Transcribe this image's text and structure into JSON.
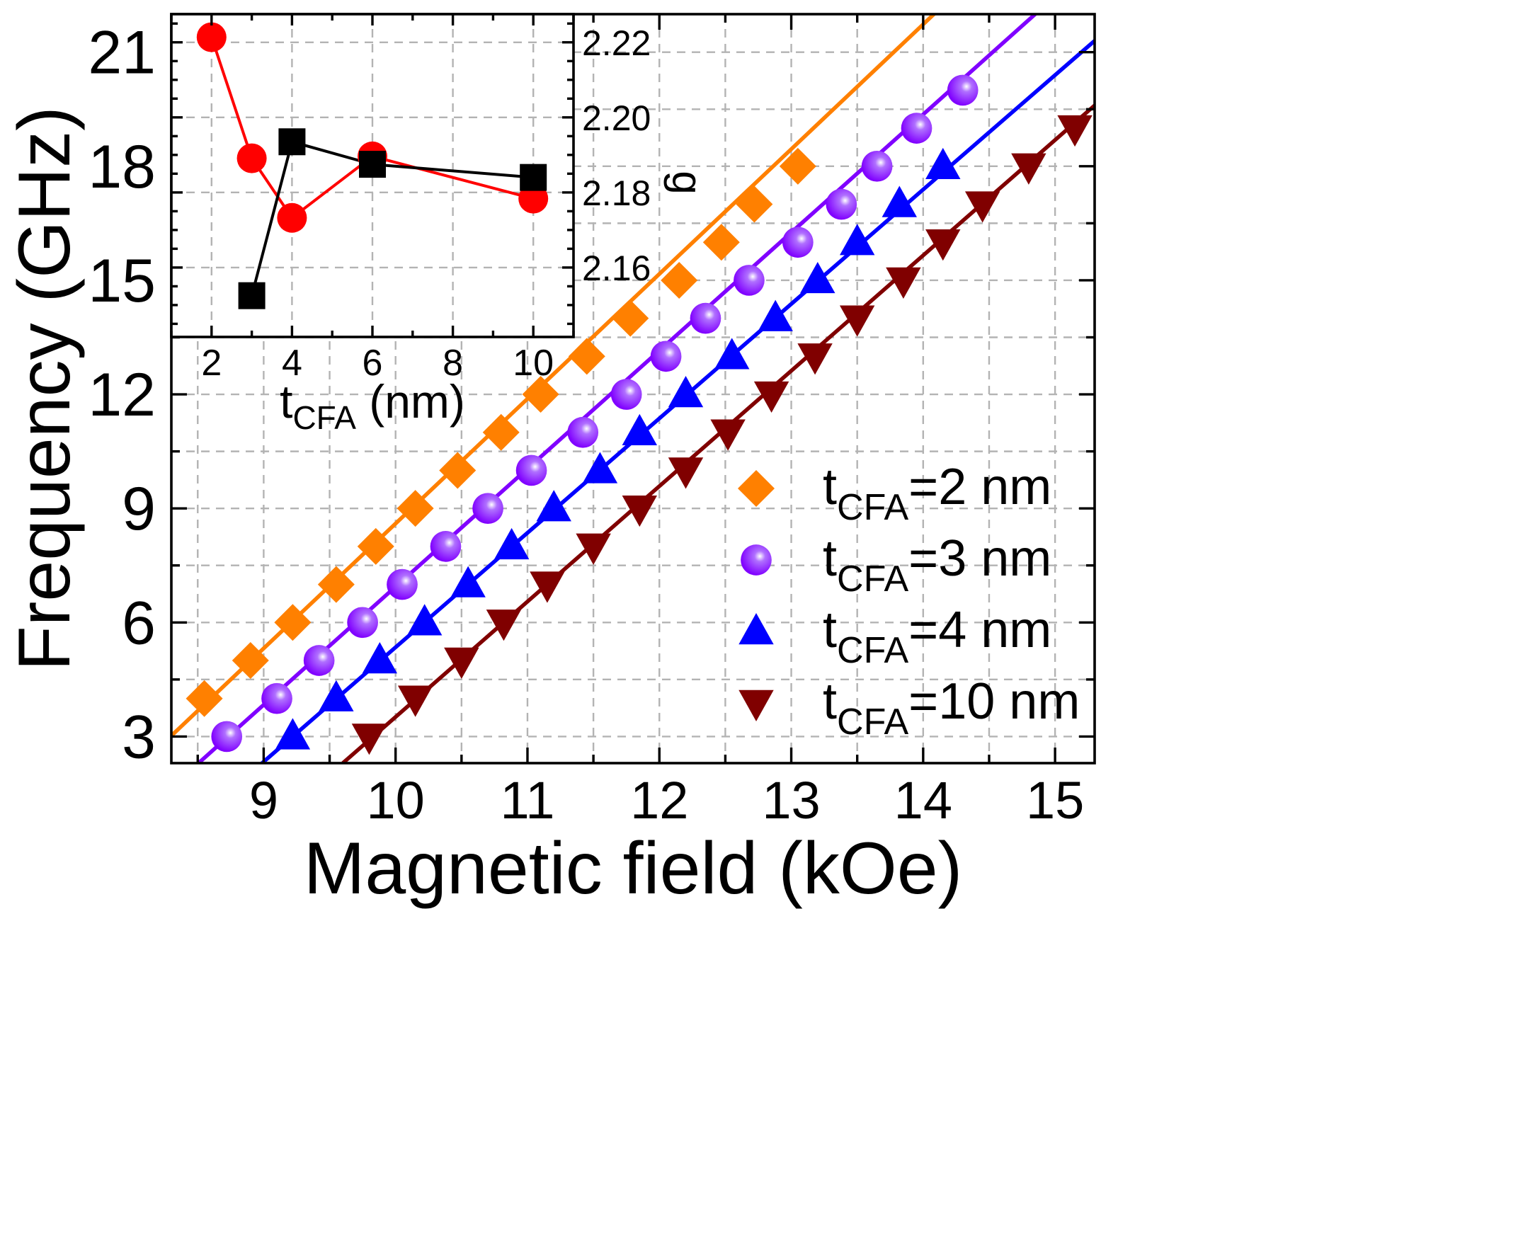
{
  "chart_data": [
    {
      "type": "scatter",
      "title": "",
      "xlabel": "Magnetic field (kOe)",
      "ylabel": "Frequency (GHz)",
      "xlim": [
        8.3,
        15.3
      ],
      "ylim": [
        2.3,
        22.0
      ],
      "x_ticks": [
        9,
        10,
        11,
        12,
        13,
        14,
        15
      ],
      "y_ticks": [
        3,
        6,
        9,
        12,
        15,
        18,
        21
      ],
      "grid": true,
      "legend_position": "bottom-right",
      "series": [
        {
          "name": "t_CFA=2 nm",
          "label_main": "t",
          "label_sub": "CFA",
          "label_rest": "=2 nm",
          "marker": "diamond",
          "color": "#ff8000",
          "points": [
            [
              8.55,
              4
            ],
            [
              8.9,
              5
            ],
            [
              9.22,
              6
            ],
            [
              9.55,
              7
            ],
            [
              9.85,
              8
            ],
            [
              10.15,
              9
            ],
            [
              10.47,
              10
            ],
            [
              10.8,
              11
            ],
            [
              11.1,
              12
            ],
            [
              11.45,
              13
            ],
            [
              11.78,
              14
            ],
            [
              12.15,
              15
            ],
            [
              12.47,
              16
            ],
            [
              12.72,
              17
            ],
            [
              13.05,
              18
            ]
          ],
          "fit": [
            [
              8.3,
              3.02
            ],
            [
              15.3,
              26.0
            ]
          ]
        },
        {
          "name": "t_CFA=3 nm",
          "label_main": "t",
          "label_sub": "CFA",
          "label_rest": "=3 nm",
          "marker": "sphere",
          "color": "#8000ff",
          "points": [
            [
              8.72,
              3
            ],
            [
              9.1,
              4
            ],
            [
              9.42,
              5
            ],
            [
              9.75,
              6
            ],
            [
              10.05,
              7
            ],
            [
              10.38,
              8
            ],
            [
              10.7,
              9
            ],
            [
              11.03,
              10
            ],
            [
              11.42,
              11
            ],
            [
              11.75,
              12
            ],
            [
              12.05,
              13
            ],
            [
              12.35,
              14
            ],
            [
              12.68,
              15
            ],
            [
              13.05,
              16
            ],
            [
              13.38,
              17
            ],
            [
              13.65,
              18
            ],
            [
              13.95,
              19
            ],
            [
              14.3,
              20
            ]
          ],
          "fit": [
            [
              8.3,
              1.66
            ],
            [
              15.3,
              23.4
            ]
          ]
        },
        {
          "name": "t_CFA=4 nm",
          "label_main": "t",
          "label_sub": "CFA",
          "label_rest": "=4 nm",
          "marker": "triangle-up",
          "color": "#0000ff",
          "points": [
            [
              9.22,
              3
            ],
            [
              9.55,
              4
            ],
            [
              9.88,
              5
            ],
            [
              10.22,
              6
            ],
            [
              10.55,
              7
            ],
            [
              10.88,
              8
            ],
            [
              11.2,
              9
            ],
            [
              11.55,
              10
            ],
            [
              11.85,
              11
            ],
            [
              12.2,
              12
            ],
            [
              12.55,
              13
            ],
            [
              12.88,
              14
            ],
            [
              13.2,
              15
            ],
            [
              13.5,
              16
            ],
            [
              13.82,
              17
            ],
            [
              14.15,
              18
            ]
          ],
          "fit": [
            [
              8.3,
              0.23
            ],
            [
              15.3,
              21.3
            ]
          ]
        },
        {
          "name": "t_CFA=10 nm",
          "label_main": "t",
          "label_sub": "CFA",
          "label_rest": "=10 nm",
          "marker": "triangle-down",
          "color": "#800000",
          "points": [
            [
              9.8,
              3
            ],
            [
              10.15,
              4
            ],
            [
              10.5,
              5
            ],
            [
              10.82,
              6
            ],
            [
              11.15,
              7
            ],
            [
              11.5,
              8
            ],
            [
              11.85,
              9
            ],
            [
              12.2,
              10
            ],
            [
              12.52,
              11
            ],
            [
              12.85,
              12
            ],
            [
              13.18,
              13
            ],
            [
              13.5,
              14
            ],
            [
              13.85,
              15
            ],
            [
              14.15,
              16
            ],
            [
              14.45,
              17
            ],
            [
              14.8,
              18
            ],
            [
              15.15,
              19
            ]
          ],
          "fit": [
            [
              9.6,
              2.3
            ],
            [
              15.3,
              19.6
            ]
          ]
        }
      ]
    },
    {
      "type": "line",
      "title": "",
      "xlabel_main": "t",
      "xlabel_sub": "CFA",
      "xlabel_rest": " (nm)",
      "xlabel": "t_CFA (nm)",
      "ylabel_right": "g",
      "xlim": [
        1.0,
        11.0
      ],
      "x_ticks": [
        2,
        4,
        6,
        8,
        10
      ],
      "y_right_lim": [
        2.1415,
        2.2275
      ],
      "y_right_ticks": [
        "2.16",
        "2.18",
        "2.20",
        "2.22"
      ],
      "y_left_lim": [
        13.6,
        22.0
      ],
      "grid": true,
      "series": [
        {
          "marker": "circle",
          "color": "#ff0000",
          "axis": "left",
          "points": [
            [
              2,
              21.4
            ],
            [
              3,
              18.25
            ],
            [
              4,
              16.7
            ],
            [
              6,
              18.3
            ],
            [
              10,
              17.2
            ]
          ]
        },
        {
          "marker": "square",
          "color": "#000000",
          "axis": "right",
          "points": [
            [
              3,
              2.1525
            ],
            [
              4,
              2.1935
            ],
            [
              6,
              2.1875
            ],
            [
              10,
              2.184
            ]
          ]
        }
      ]
    }
  ]
}
